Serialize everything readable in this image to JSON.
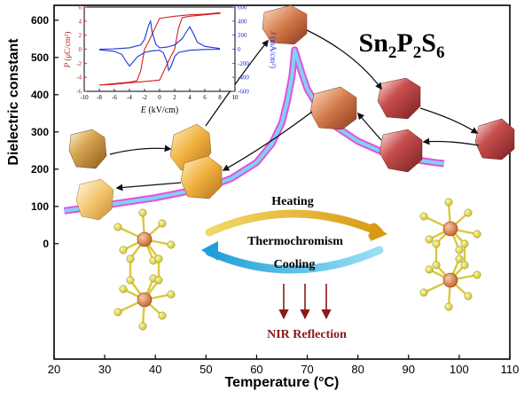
{
  "main_chart": {
    "title": "Sn2P2S6",
    "xlabel": "Temperature (°C)",
    "ylabel": "Dielectric constant",
    "x_ticks": [
      "20",
      "30",
      "40",
      "50",
      "60",
      "70",
      "80",
      "90",
      "100",
      "110"
    ],
    "y_ticks": [
      "0",
      "100",
      "200",
      "300",
      "400",
      "500",
      "600"
    ]
  },
  "inset": {
    "xlabel": "E (kV/cm)",
    "ylabel_left": "P (μC/cm²)",
    "ylabel_right": "J (mA/cm²)",
    "x_ticks": [
      "-10",
      "-8",
      "-6",
      "-4",
      "-2",
      "0",
      "2",
      "4",
      "6",
      "8",
      "10"
    ],
    "y_left_ticks": [
      "-6",
      "-4",
      "-2",
      "0",
      "2",
      "4",
      "6"
    ],
    "y_right_ticks": [
      "-600",
      "-400",
      "-200",
      "0",
      "200",
      "400",
      "600"
    ]
  },
  "schematic": {
    "heating_label": "Heating",
    "middle_label": "Thermochromism",
    "cooling_label": "Cooling",
    "nir_label": "NIR Reflection"
  },
  "colors": {
    "heating_arrow": "#d9a51f",
    "cooling_arrow": "#27a9dc",
    "curve_outer": "#e64fe0",
    "curve_inner": "#7fd3f0",
    "polarization": "#d42020",
    "current": "#1f33d6",
    "nir_arrow": "#8a1a1a",
    "sn_atom": "#d67a3c",
    "s_atom": "#e6e04a"
  },
  "chart_data": [
    {
      "type": "line",
      "title": "Sn2P2S6",
      "xlabel": "Temperature (°C)",
      "ylabel": "Dielectric constant",
      "xlim": [
        20,
        110
      ],
      "ylim": [
        -310,
        640
      ],
      "series": [
        {
          "x": [
            22,
            30,
            40,
            50,
            55,
            60,
            63,
            65,
            66,
            67,
            67.5,
            68,
            69,
            70,
            72,
            75,
            80,
            85,
            90,
            95,
            97
          ],
          "y": [
            88,
            103,
            123,
            150,
            175,
            218,
            268,
            325,
            380,
            450,
            520,
            498,
            455,
            415,
            370,
            320,
            275,
            245,
            228,
            218,
            215
          ]
        }
      ]
    },
    {
      "type": "line",
      "xlabel": "E (kV/cm)",
      "ylabel": "P (μC/cm²)",
      "xlim": [
        -10,
        10
      ],
      "ylim": [
        -6,
        6
      ],
      "series": [
        {
          "x": [
            -8,
            -6,
            -4,
            -3,
            -2.5,
            -2,
            -1.5,
            0,
            2,
            4,
            6,
            8,
            8,
            6,
            4,
            3,
            2.5,
            2,
            1.5,
            0,
            -2,
            -4,
            -6,
            -8
          ],
          "y": [
            -5.1,
            -4.9,
            -4.7,
            -4.5,
            -3,
            0,
            1,
            4.4,
            4.7,
            4.9,
            5.0,
            5.2,
            5.1,
            4.9,
            4.7,
            4.5,
            3,
            0,
            -1,
            -4.4,
            -4.6,
            -4.8,
            -5.0,
            -5.1
          ]
        }
      ]
    },
    {
      "type": "line",
      "xlabel": "E (kV/cm)",
      "ylabel": "J (mA/cm²)",
      "xlim": [
        -10,
        10
      ],
      "ylim": [
        -600,
        600
      ],
      "series": [
        {
          "x": [
            -8,
            -6,
            -4,
            -2.5,
            -2,
            -1.5,
            -1.2,
            -1,
            -0.5,
            0,
            1,
            2,
            3,
            3.5,
            4,
            4.5,
            5,
            6,
            8
          ],
          "y": [
            0,
            5,
            20,
            60,
            140,
            330,
            400,
            250,
            70,
            20,
            30,
            60,
            150,
            240,
            320,
            220,
            100,
            40,
            10
          ]
        }
      ]
    }
  ]
}
